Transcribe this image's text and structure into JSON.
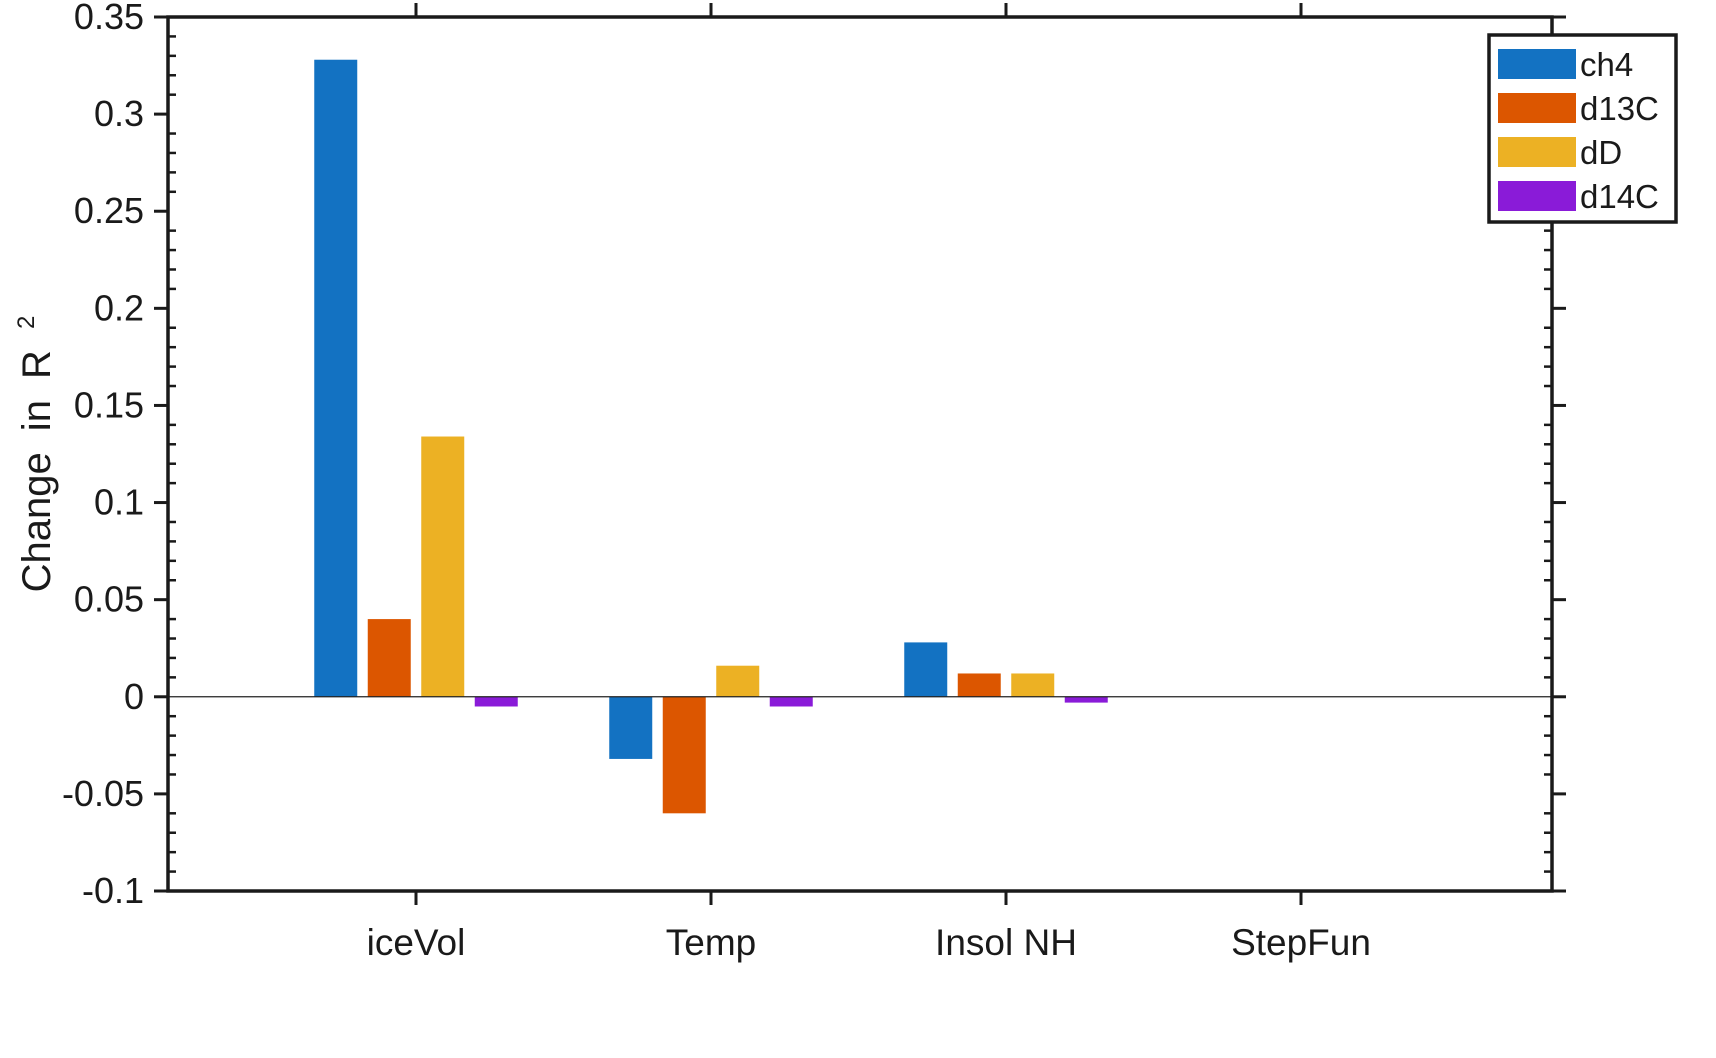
{
  "chart_data": {
    "type": "bar",
    "categories": [
      "iceVol",
      "Temp",
      "Insol NH",
      "StepFun"
    ],
    "series": [
      {
        "name": "ch4",
        "color": "#1372c2",
        "values": [
          0.328,
          -0.032,
          0.028,
          0
        ]
      },
      {
        "name": "d13C",
        "color": "#dc5600",
        "values": [
          0.04,
          -0.06,
          0.012,
          0
        ]
      },
      {
        "name": "dD",
        "color": "#ecb124",
        "values": [
          0.134,
          0.016,
          0.012,
          0
        ]
      },
      {
        "name": "d14C",
        "color": "#8a1bd8",
        "values": [
          -0.005,
          -0.005,
          -0.003,
          0
        ]
      }
    ],
    "title": "",
    "xlabel": "",
    "ylabel": "Change in R",
    "ylabel_superscript": "2",
    "ylim": [
      -0.1,
      0.35
    ],
    "yticks": [
      -0.1,
      -0.05,
      0,
      0.05,
      0.1,
      0.15,
      0.2,
      0.25,
      0.3,
      0.35
    ],
    "ytick_labels": [
      "-0.1",
      "-0.05",
      "0",
      "0.05",
      "0.1",
      "0.15",
      "0.2",
      "0.25",
      "0.3",
      "0.35"
    ],
    "grid": false,
    "legend_position": "top-right",
    "zero_line": true
  }
}
